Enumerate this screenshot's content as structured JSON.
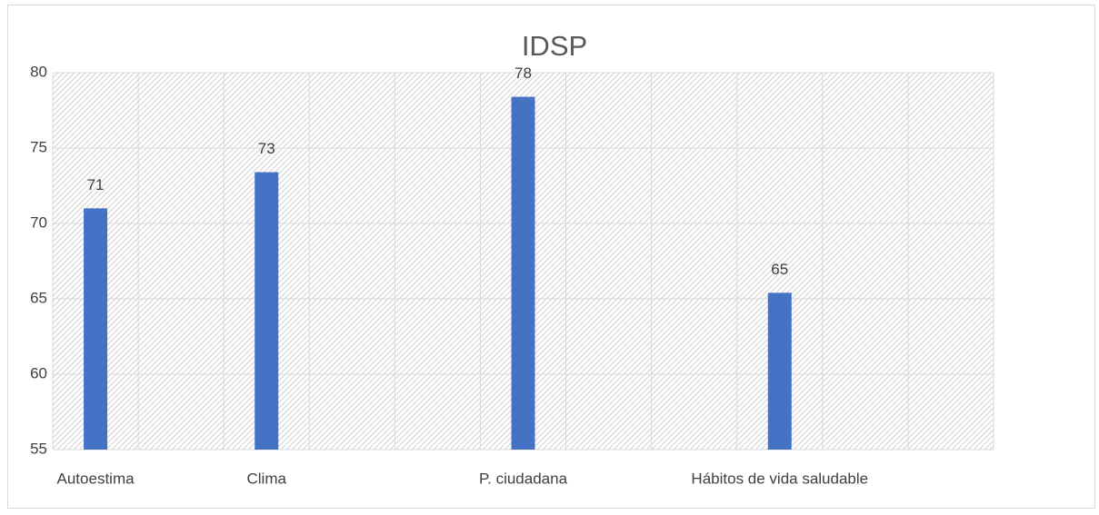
{
  "chart_data": {
    "type": "bar",
    "title": "IDSP",
    "categories": [
      "Autoestima",
      null,
      "Clima",
      null,
      null,
      "P.  ciudadana",
      null,
      null,
      "Hábitos de vida saludable",
      null,
      null
    ],
    "values": [
      71,
      null,
      73.4,
      null,
      null,
      78.4,
      null,
      null,
      65.4,
      null,
      null
    ],
    "value_labels": [
      "71",
      null,
      "73",
      null,
      null,
      "78",
      null,
      null,
      "65",
      null,
      null
    ],
    "color": "#4472c4",
    "ylim": [
      55,
      80
    ],
    "yticks": [
      55,
      60,
      65,
      70,
      75,
      80
    ],
    "grid": true
  }
}
